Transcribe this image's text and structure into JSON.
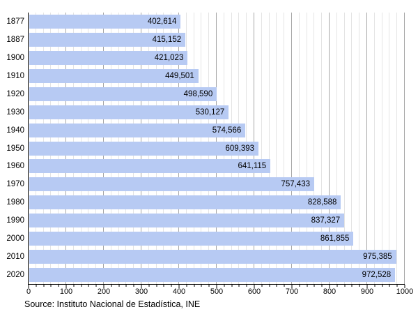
{
  "chart_data": {
    "type": "bar",
    "orientation": "horizontal",
    "title": "",
    "xlabel": "",
    "ylabel": "",
    "categories": [
      "1877",
      "1887",
      "1900",
      "1910",
      "1920",
      "1930",
      "1940",
      "1950",
      "1960",
      "1970",
      "1980",
      "1990",
      "2000",
      "2010",
      "2020"
    ],
    "values": [
      402614,
      415152,
      421023,
      449501,
      498590,
      530127,
      574566,
      609393,
      641115,
      757433,
      828588,
      837327,
      861855,
      975385,
      972528
    ],
    "value_labels": [
      "402,614",
      "415,152",
      "421,023",
      "449,501",
      "498,590",
      "530,127",
      "574,566",
      "609,393",
      "641,115",
      "757,433",
      "828,588",
      "837,327",
      "861,855",
      "975,385",
      "972,528"
    ],
    "x_axis": {
      "min": 0,
      "max": 1000,
      "major_tick_step": 100,
      "minor_tick_step": 20,
      "tick_labels": [
        "0",
        "100",
        "200",
        "300",
        "400",
        "500",
        "600",
        "700",
        "800",
        "900",
        "1000"
      ],
      "axis_values_in": "thousands"
    },
    "grid": "on",
    "legend": "none",
    "source": "Source: Instituto Nacional de Estadística, INE",
    "colors": {
      "bar": "#b7caf3",
      "grid_minor": "#e4e4e4",
      "grid_major": "#a6a6a6",
      "axis": "#000000",
      "text": "#000000",
      "background": "#ffffff"
    }
  }
}
